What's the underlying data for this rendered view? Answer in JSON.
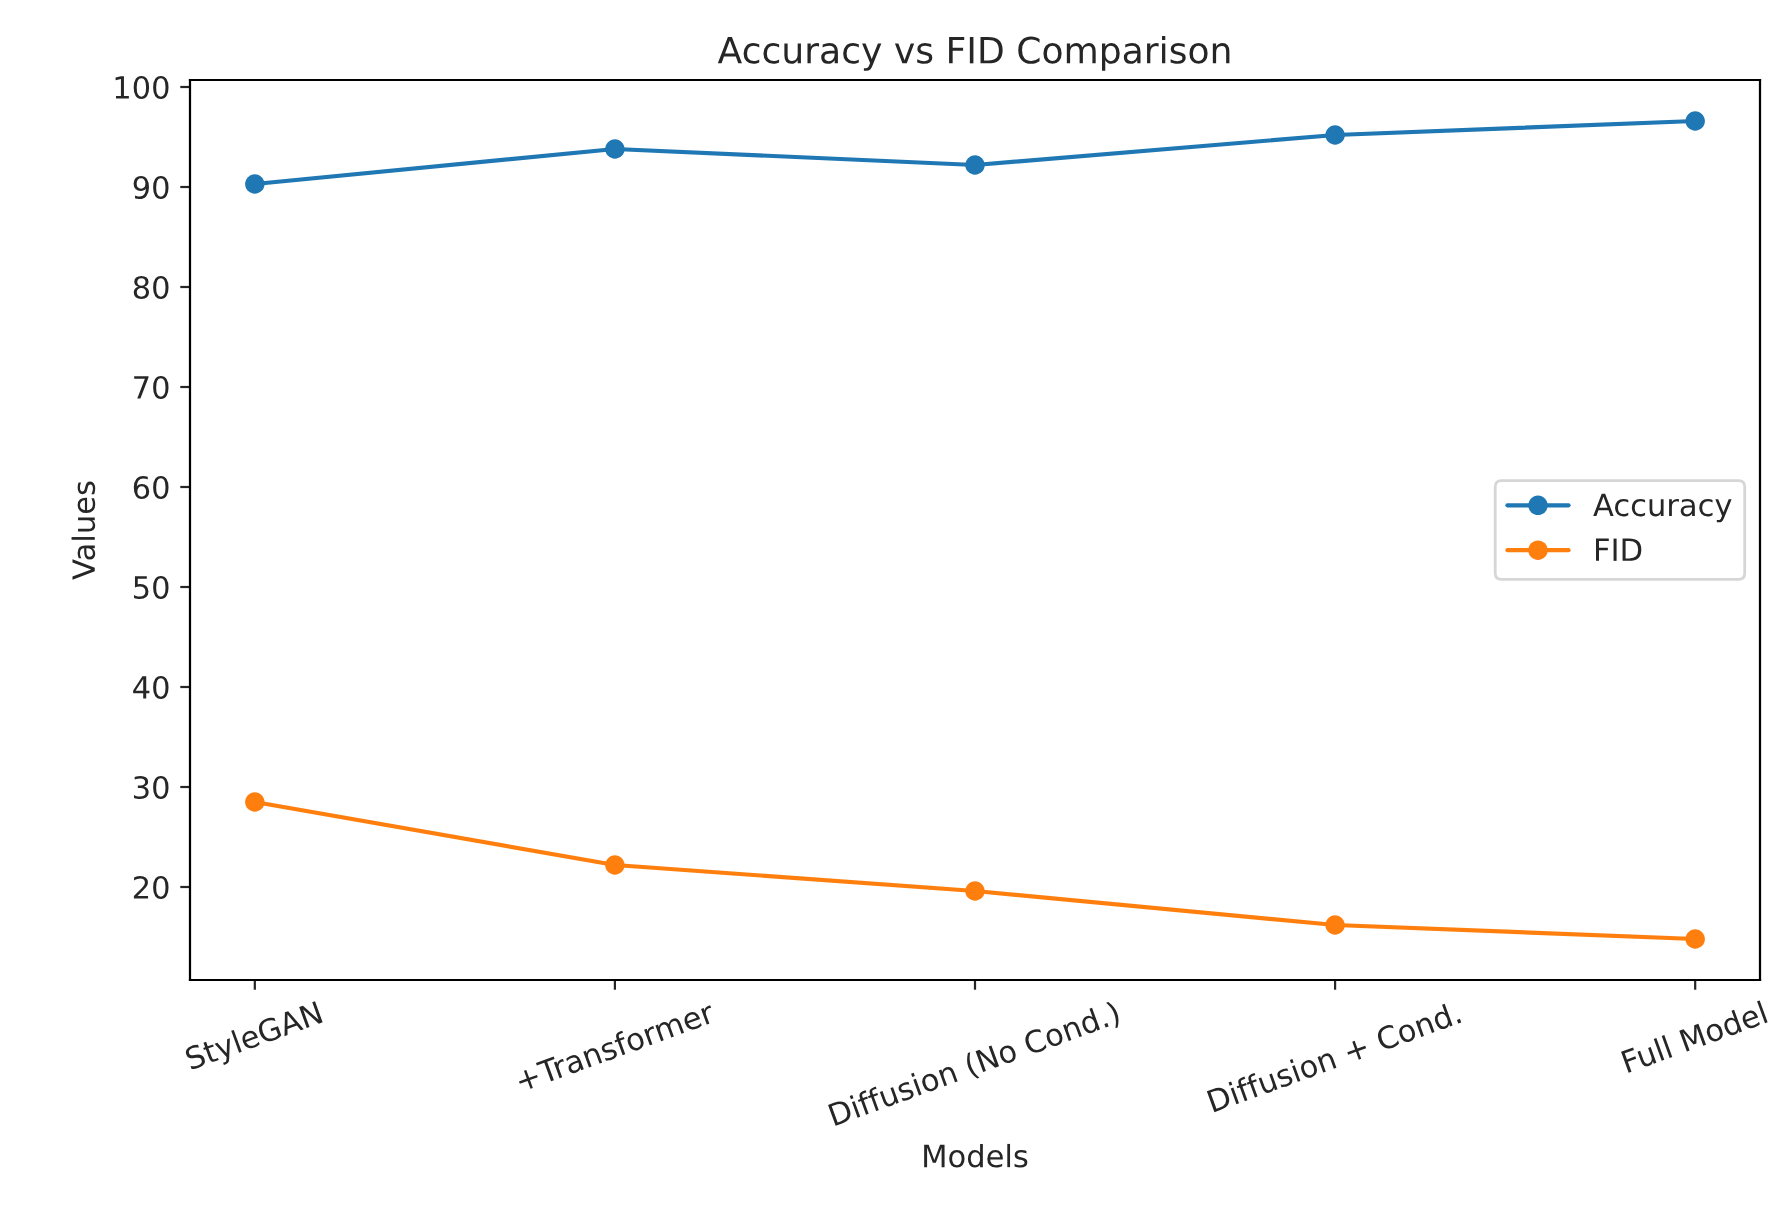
{
  "chart_data": {
    "type": "line",
    "title": "Accuracy vs FID Comparison",
    "xlabel": "Models",
    "ylabel": "Values",
    "categories": [
      "StyleGAN",
      "+Transformer",
      "Diffusion (No Cond.)",
      "Diffusion + Cond.",
      "Full Model"
    ],
    "series": [
      {
        "name": "Accuracy",
        "color": "#1f77b4",
        "values": [
          90.3,
          93.8,
          92.2,
          95.2,
          96.6
        ]
      },
      {
        "name": "FID",
        "color": "#ff7f0e",
        "values": [
          28.5,
          22.2,
          19.6,
          16.2,
          14.8
        ]
      }
    ],
    "ylim": [
      10.7,
      100.7
    ],
    "yticks": [
      20,
      30,
      40,
      50,
      60,
      70,
      80,
      90,
      100
    ],
    "marker": "circle",
    "line_style": "solid",
    "legend": "right",
    "grid": false
  }
}
